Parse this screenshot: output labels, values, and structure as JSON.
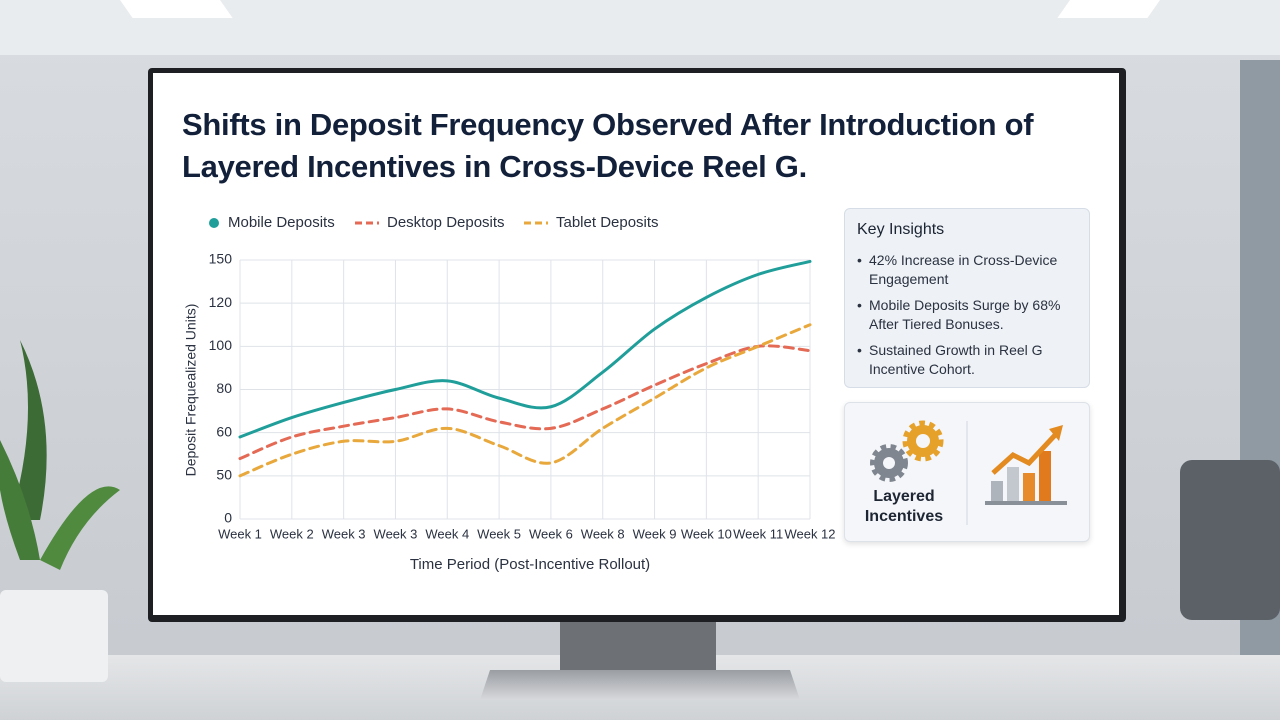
{
  "chart_data": {
    "type": "line",
    "title": "Shifts in Deposit Frequency Observed After Introduction of Layered Incentives in Cross-Device Reel G.",
    "xlabel": "Time Period (Post-Incentive Rollout)",
    "ylabel": "Deposit Frequealized Units)",
    "categories": [
      "Week 1",
      "Week 2",
      "Week 3",
      "Week 3",
      "Week 4",
      "Week 5",
      "Week 6",
      "Week 8",
      "Week 9",
      "Week 10",
      "Week 11",
      "Week 12"
    ],
    "yticks": [
      150,
      120,
      100,
      80,
      60,
      50,
      0
    ],
    "ylim": [
      0,
      150
    ],
    "grid": true,
    "series": [
      {
        "name": "Mobile Deposits",
        "color": "#1f9e9a",
        "dash": false,
        "marker": "circle",
        "values": [
          59,
          67,
          74,
          80,
          84,
          76,
          72,
          88,
          108,
          124,
          140,
          149
        ]
      },
      {
        "name": "Desktop Deposits",
        "color": "#e46a55",
        "dash": true,
        "values": [
          54,
          59,
          63,
          67,
          71,
          65,
          62,
          71,
          82,
          92,
          100,
          98
        ]
      },
      {
        "name": "Tablet Deposits",
        "color": "#e8a83c",
        "dash": true,
        "values": [
          50,
          55,
          58,
          58,
          62,
          57,
          53,
          62,
          76,
          90,
          100,
          110
        ]
      }
    ]
  },
  "insights": {
    "heading": "Key Insights",
    "items": [
      "42% Increase in Cross-Device Engagement",
      "Mobile Deposits Surge by 68% After Tiered Bonuses.",
      "Sustained Growth in Reel G Incentive Cohort."
    ]
  },
  "badge": {
    "label": "Layered Incentives"
  }
}
